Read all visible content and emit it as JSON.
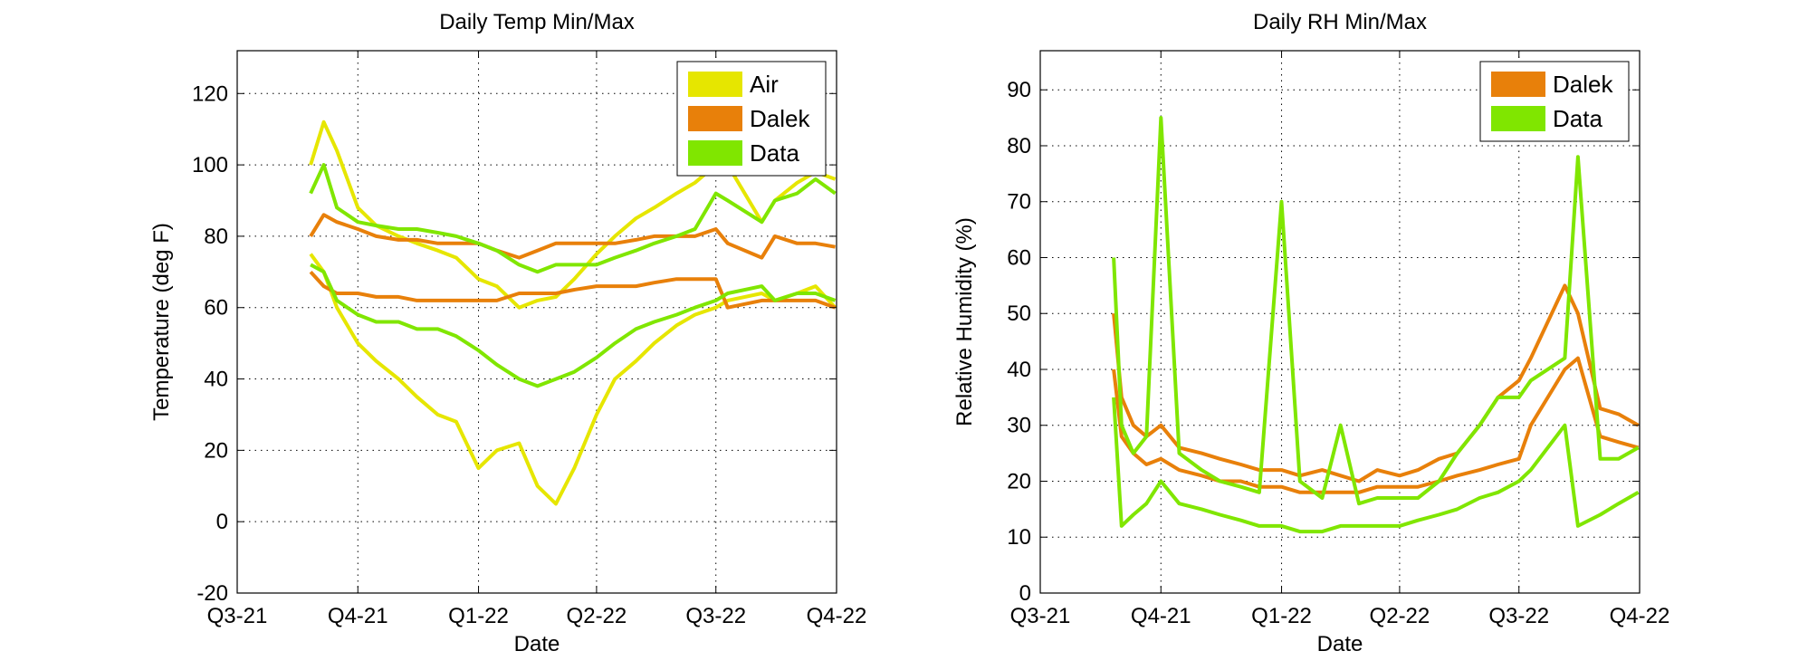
{
  "chart_data": [
    {
      "type": "line",
      "title": "Daily Temp Min/Max",
      "xlabel": "Date",
      "ylabel": "Temperature (deg F)",
      "x_ticks": [
        "Q3-21",
        "Q4-21",
        "Q1-22",
        "Q2-22",
        "Q3-22",
        "Q4-22"
      ],
      "ylim": [
        -20,
        132
      ],
      "y_ticks": [
        -20,
        0,
        20,
        40,
        60,
        80,
        100,
        120
      ],
      "grid": true,
      "legend_position": "top-right",
      "colors": {
        "Air": "#e6e600",
        "Dalek": "#e8800a",
        "Data": "#80e600"
      },
      "series": [
        {
          "name": "Air",
          "color": "#e6e600",
          "parts": [
            {
              "label": "max",
              "x": [
                "2021-08-26",
                "2021-09-05",
                "2021-09-15",
                "2021-10-01",
                "2021-10-15",
                "2021-11-01",
                "2021-11-15",
                "2021-12-01",
                "2021-12-15",
                "2022-01-01",
                "2022-01-15",
                "2022-02-01",
                "2022-02-15",
                "2022-03-01",
                "2022-03-15",
                "2022-04-01",
                "2022-04-15",
                "2022-05-01",
                "2022-05-15",
                "2022-06-01",
                "2022-06-15",
                "2022-07-01",
                "2022-07-10",
                "2022-08-05",
                "2022-08-15",
                "2022-09-01",
                "2022-09-15",
                "2022-09-30"
              ],
              "y": [
                100,
                112,
                104,
                88,
                83,
                80,
                78,
                76,
                74,
                68,
                66,
                60,
                62,
                63,
                68,
                75,
                80,
                85,
                88,
                92,
                95,
                100,
                100,
                84,
                90,
                95,
                98,
                96
              ]
            },
            {
              "label": "min",
              "x": [
                "2021-08-26",
                "2021-09-05",
                "2021-09-15",
                "2021-10-01",
                "2021-10-15",
                "2021-11-01",
                "2021-11-15",
                "2021-12-01",
                "2021-12-15",
                "2022-01-01",
                "2022-01-15",
                "2022-02-01",
                "2022-02-15",
                "2022-03-01",
                "2022-03-15",
                "2022-04-01",
                "2022-04-15",
                "2022-05-01",
                "2022-05-15",
                "2022-06-01",
                "2022-06-15",
                "2022-07-01",
                "2022-07-10",
                "2022-08-05",
                "2022-08-15",
                "2022-09-01",
                "2022-09-15",
                "2022-09-30"
              ],
              "y": [
                75,
                70,
                60,
                50,
                45,
                40,
                35,
                30,
                28,
                15,
                20,
                22,
                10,
                5,
                15,
                30,
                40,
                45,
                50,
                55,
                58,
                60,
                62,
                64,
                62,
                64,
                66,
                60
              ]
            }
          ]
        },
        {
          "name": "Dalek",
          "color": "#e8800a",
          "parts": [
            {
              "label": "max",
              "x": [
                "2021-08-26",
                "2021-09-05",
                "2021-09-15",
                "2021-10-01",
                "2021-10-15",
                "2021-11-01",
                "2021-11-15",
                "2021-12-01",
                "2021-12-15",
                "2022-01-01",
                "2022-01-15",
                "2022-02-01",
                "2022-02-15",
                "2022-03-01",
                "2022-03-15",
                "2022-04-01",
                "2022-04-15",
                "2022-05-01",
                "2022-05-15",
                "2022-06-01",
                "2022-06-15",
                "2022-07-01",
                "2022-07-10",
                "2022-08-05",
                "2022-08-15",
                "2022-09-01",
                "2022-09-15",
                "2022-09-30"
              ],
              "y": [
                80,
                86,
                84,
                82,
                80,
                79,
                79,
                78,
                78,
                78,
                76,
                74,
                76,
                78,
                78,
                78,
                78,
                79,
                80,
                80,
                80,
                82,
                78,
                74,
                80,
                78,
                78,
                77
              ]
            },
            {
              "label": "min",
              "x": [
                "2021-08-26",
                "2021-09-05",
                "2021-09-15",
                "2021-10-01",
                "2021-10-15",
                "2021-11-01",
                "2021-11-15",
                "2021-12-01",
                "2021-12-15",
                "2022-01-01",
                "2022-01-15",
                "2022-02-01",
                "2022-02-15",
                "2022-03-01",
                "2022-03-15",
                "2022-04-01",
                "2022-04-15",
                "2022-05-01",
                "2022-05-15",
                "2022-06-01",
                "2022-06-15",
                "2022-07-01",
                "2022-07-10",
                "2022-08-05",
                "2022-08-15",
                "2022-09-01",
                "2022-09-15",
                "2022-09-30"
              ],
              "y": [
                70,
                66,
                64,
                64,
                63,
                63,
                62,
                62,
                62,
                62,
                62,
                64,
                64,
                64,
                65,
                66,
                66,
                66,
                67,
                68,
                68,
                68,
                60,
                62,
                62,
                62,
                62,
                60
              ]
            }
          ]
        },
        {
          "name": "Data",
          "color": "#80e600",
          "parts": [
            {
              "label": "max",
              "x": [
                "2021-08-26",
                "2021-09-05",
                "2021-09-15",
                "2021-10-01",
                "2021-10-15",
                "2021-11-01",
                "2021-11-15",
                "2021-12-01",
                "2021-12-15",
                "2022-01-01",
                "2022-01-15",
                "2022-02-01",
                "2022-02-15",
                "2022-03-01",
                "2022-03-15",
                "2022-04-01",
                "2022-04-15",
                "2022-05-01",
                "2022-05-15",
                "2022-06-01",
                "2022-06-15",
                "2022-07-01",
                "2022-07-10",
                "2022-08-05",
                "2022-08-15",
                "2022-09-01",
                "2022-09-15",
                "2022-09-30"
              ],
              "y": [
                92,
                100,
                88,
                84,
                83,
                82,
                82,
                81,
                80,
                78,
                76,
                72,
                70,
                72,
                72,
                72,
                74,
                76,
                78,
                80,
                82,
                92,
                90,
                84,
                90,
                92,
                96,
                92
              ]
            },
            {
              "label": "min",
              "x": [
                "2021-08-26",
                "2021-09-05",
                "2021-09-15",
                "2021-10-01",
                "2021-10-15",
                "2021-11-01",
                "2021-11-15",
                "2021-12-01",
                "2021-12-15",
                "2022-01-01",
                "2022-01-15",
                "2022-02-01",
                "2022-02-15",
                "2022-03-01",
                "2022-03-15",
                "2022-04-01",
                "2022-04-15",
                "2022-05-01",
                "2022-05-15",
                "2022-06-01",
                "2022-06-15",
                "2022-07-01",
                "2022-07-10",
                "2022-08-05",
                "2022-08-15",
                "2022-09-01",
                "2022-09-15",
                "2022-09-30"
              ],
              "y": [
                72,
                70,
                62,
                58,
                56,
                56,
                54,
                54,
                52,
                48,
                44,
                40,
                38,
                40,
                42,
                46,
                50,
                54,
                56,
                58,
                60,
                62,
                64,
                66,
                62,
                64,
                64,
                62
              ]
            }
          ]
        }
      ]
    },
    {
      "type": "line",
      "title": "Daily RH Min/Max",
      "xlabel": "Date",
      "ylabel": "Relative Humidity (%)",
      "x_ticks": [
        "Q3-21",
        "Q4-21",
        "Q1-22",
        "Q2-22",
        "Q3-22",
        "Q4-22"
      ],
      "ylim": [
        0,
        97
      ],
      "y_ticks": [
        0,
        10,
        20,
        30,
        40,
        50,
        60,
        70,
        80,
        90
      ],
      "grid": true,
      "legend_position": "top-right",
      "colors": {
        "Dalek": "#e8800a",
        "Data": "#80e600"
      },
      "series": [
        {
          "name": "Dalek",
          "color": "#e8800a",
          "parts": [
            {
              "label": "max",
              "x": [
                "2021-08-26",
                "2021-09-01",
                "2021-09-10",
                "2021-09-20",
                "2021-10-01",
                "2021-10-15",
                "2021-11-01",
                "2021-11-15",
                "2021-12-01",
                "2021-12-15",
                "2022-01-01",
                "2022-01-15",
                "2022-02-01",
                "2022-02-15",
                "2022-03-01",
                "2022-03-15",
                "2022-04-01",
                "2022-04-15",
                "2022-05-01",
                "2022-05-15",
                "2022-06-01",
                "2022-06-15",
                "2022-07-01",
                "2022-07-10",
                "2022-08-05",
                "2022-08-15",
                "2022-09-01",
                "2022-09-15",
                "2022-09-30"
              ],
              "y": [
                50,
                35,
                30,
                28,
                30,
                26,
                25,
                24,
                23,
                22,
                22,
                21,
                22,
                21,
                20,
                22,
                21,
                22,
                24,
                25,
                30,
                35,
                38,
                42,
                55,
                50,
                33,
                32,
                30
              ]
            },
            {
              "label": "min",
              "x": [
                "2021-08-26",
                "2021-09-01",
                "2021-09-10",
                "2021-09-20",
                "2021-10-01",
                "2021-10-15",
                "2021-11-01",
                "2021-11-15",
                "2021-12-01",
                "2021-12-15",
                "2022-01-01",
                "2022-01-15",
                "2022-02-01",
                "2022-02-15",
                "2022-03-01",
                "2022-03-15",
                "2022-04-01",
                "2022-04-15",
                "2022-05-01",
                "2022-05-15",
                "2022-06-01",
                "2022-06-15",
                "2022-07-01",
                "2022-07-10",
                "2022-08-05",
                "2022-08-15",
                "2022-09-01",
                "2022-09-15",
                "2022-09-30"
              ],
              "y": [
                40,
                28,
                25,
                23,
                24,
                22,
                21,
                20,
                20,
                19,
                19,
                18,
                18,
                18,
                18,
                19,
                19,
                19,
                20,
                21,
                22,
                23,
                24,
                30,
                40,
                42,
                28,
                27,
                26
              ]
            }
          ]
        },
        {
          "name": "Data",
          "color": "#80e600",
          "parts": [
            {
              "label": "max",
              "x": [
                "2021-08-26",
                "2021-09-01",
                "2021-09-10",
                "2021-09-20",
                "2021-10-01",
                "2021-10-15",
                "2021-11-01",
                "2021-11-15",
                "2021-12-01",
                "2021-12-15",
                "2022-01-01",
                "2022-01-15",
                "2022-02-01",
                "2022-02-15",
                "2022-03-01",
                "2022-03-15",
                "2022-04-01",
                "2022-04-15",
                "2022-05-01",
                "2022-05-15",
                "2022-06-01",
                "2022-06-15",
                "2022-07-01",
                "2022-07-10",
                "2022-08-05",
                "2022-08-15",
                "2022-09-01",
                "2022-09-15",
                "2022-09-30"
              ],
              "y": [
                60,
                30,
                25,
                28,
                85,
                25,
                22,
                20,
                19,
                18,
                70,
                20,
                17,
                30,
                16,
                17,
                17,
                17,
                20,
                25,
                30,
                35,
                35,
                38,
                42,
                78,
                24,
                24,
                26
              ]
            },
            {
              "label": "min",
              "x": [
                "2021-08-26",
                "2021-09-01",
                "2021-09-10",
                "2021-09-20",
                "2021-10-01",
                "2021-10-15",
                "2021-11-01",
                "2021-11-15",
                "2021-12-01",
                "2021-12-15",
                "2022-01-01",
                "2022-01-15",
                "2022-02-01",
                "2022-02-15",
                "2022-03-01",
                "2022-03-15",
                "2022-04-01",
                "2022-04-15",
                "2022-05-01",
                "2022-05-15",
                "2022-06-01",
                "2022-06-15",
                "2022-07-01",
                "2022-07-10",
                "2022-08-05",
                "2022-08-15",
                "2022-09-01",
                "2022-09-15",
                "2022-09-30"
              ],
              "y": [
                35,
                12,
                14,
                16,
                20,
                16,
                15,
                14,
                13,
                12,
                12,
                11,
                11,
                12,
                12,
                12,
                12,
                13,
                14,
                15,
                17,
                18,
                20,
                22,
                30,
                12,
                14,
                16,
                18
              ]
            }
          ]
        }
      ]
    }
  ]
}
